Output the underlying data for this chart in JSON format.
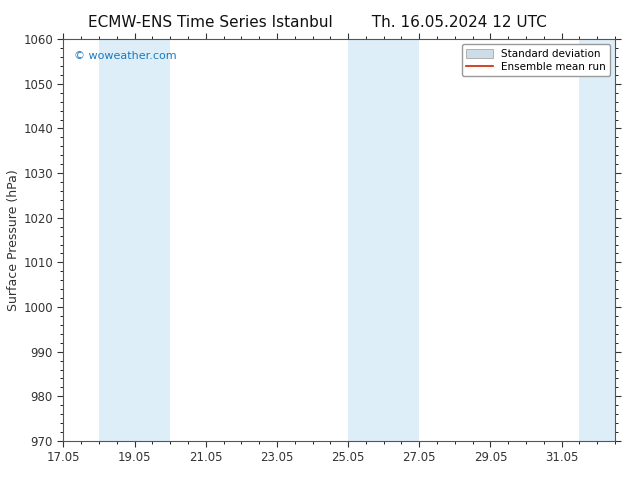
{
  "title_left": "ECMW-ENS Time Series Istanbul",
  "title_right": "Th. 16.05.2024 12 UTC",
  "ylabel": "Surface Pressure (hPa)",
  "xlabel": "",
  "ylim": [
    970,
    1060
  ],
  "yticks": [
    970,
    980,
    990,
    1000,
    1010,
    1020,
    1030,
    1040,
    1050,
    1060
  ],
  "xlim_start": 17.0,
  "xlim_end": 32.5,
  "xtick_days": [
    17,
    19,
    21,
    23,
    25,
    27,
    29,
    31
  ],
  "xtick_labels": [
    "17.05",
    "19.05",
    "21.05",
    "23.05",
    "25.05",
    "27.05",
    "29.05",
    "31.05"
  ],
  "shaded_bands": [
    {
      "xmin": 18.0,
      "xmax": 20.0,
      "color": "#ddeef8"
    },
    {
      "xmin": 25.0,
      "xmax": 27.0,
      "color": "#ddeef8"
    },
    {
      "xmin": 31.5,
      "xmax": 33.0,
      "color": "#ddeef8"
    }
  ],
  "watermark_text": "© woweather.com",
  "watermark_color": "#1a7abf",
  "legend_std_color": "#ccdde8",
  "legend_mean_color": "#cc2200",
  "bg_color": "#ffffff",
  "plot_bg_color": "#ffffff",
  "border_color": "#555555",
  "tick_color": "#333333",
  "title_fontsize": 11,
  "label_fontsize": 9,
  "tick_fontsize": 8.5
}
